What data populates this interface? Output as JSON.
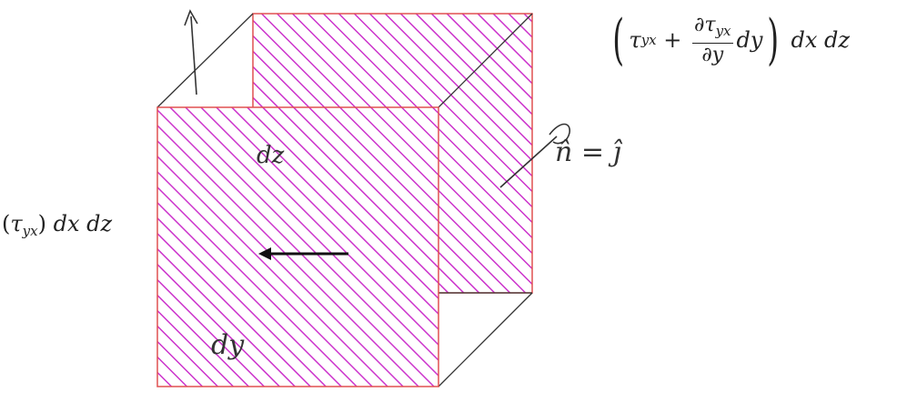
{
  "diagram": {
    "left_face_label": {
      "tau": "τ",
      "sub": "yx",
      "tail": "dx  dz"
    },
    "right_face_label": {
      "tau": "τ",
      "sub": "yx",
      "plus": "+",
      "frac_num": "∂τ",
      "frac_num_sub": "yx",
      "frac_den": "∂y",
      "dy": "dy",
      "tail": "dx  dz"
    },
    "handwritten": {
      "front_top": "dz",
      "front_bottom": "dy",
      "normal_eq": "n̂ = ĵ"
    },
    "colors": {
      "hatch": "#cc33cc",
      "outline": "#e05050",
      "edge": "#333333"
    }
  }
}
